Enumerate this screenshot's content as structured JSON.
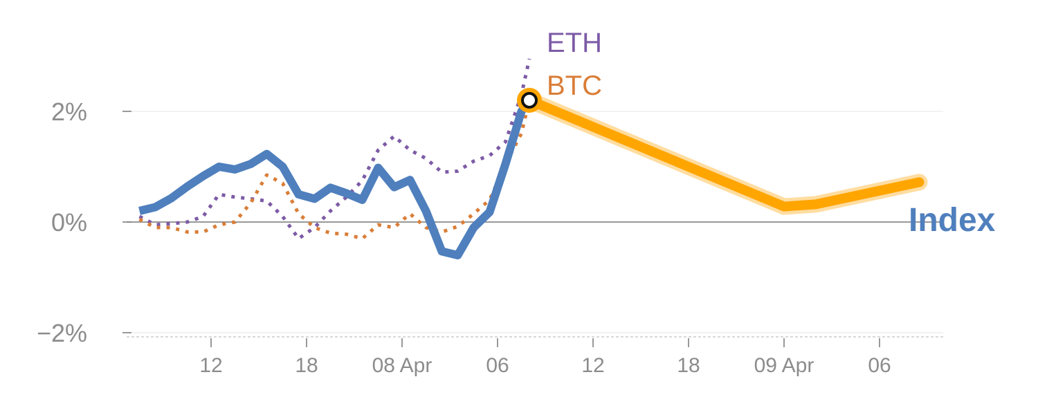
{
  "chart_data": {
    "type": "line",
    "title": "",
    "xlabel": "",
    "ylabel": "",
    "x_tick_labels": [
      "12",
      "18",
      "08 Apr",
      "06",
      "12",
      "18",
      "09 Apr",
      "06"
    ],
    "x_tick_hours": [
      12,
      18,
      24,
      30,
      36,
      42,
      48,
      54
    ],
    "y_tick_labels": [
      "2%",
      "0%",
      "−2%"
    ],
    "y_tick_values": [
      2,
      0,
      -2
    ],
    "ylim": [
      -2.1,
      3.1
    ],
    "xlim": [
      6.0,
      58.0
    ],
    "grid": "horizontal",
    "legend": "end labels",
    "series": [
      {
        "name": "Index",
        "style": "solid",
        "color": "#4f7fbd",
        "x": [
          7.5,
          8.5,
          9.5,
          10.5,
          11.5,
          12.5,
          13.5,
          14.5,
          15.5,
          16.5,
          17.5,
          18.5,
          19.5,
          20.5,
          21.5,
          22.5,
          23.5,
          24.5,
          25.5,
          26.5,
          27.5,
          28.5,
          29.5,
          30.5,
          31.5,
          32.0
        ],
        "values": [
          0.2,
          0.27,
          0.43,
          0.64,
          0.83,
          1.0,
          0.95,
          1.05,
          1.23,
          1.0,
          0.5,
          0.42,
          0.62,
          0.52,
          0.4,
          0.98,
          0.63,
          0.76,
          0.2,
          -0.53,
          -0.6,
          -0.1,
          0.18,
          1.05,
          2.0,
          2.2
        ]
      },
      {
        "name": "BTC",
        "style": "dotted",
        "color": "#d97e38",
        "x": [
          7.5,
          8.5,
          9.5,
          10.5,
          11.5,
          12.5,
          13.5,
          14.5,
          15.5,
          16.5,
          17.5,
          18.5,
          19.5,
          20.5,
          21.5,
          22.5,
          23.5,
          24.5,
          25.5,
          26.5,
          27.5,
          28.5,
          29.5,
          30.5,
          31.5,
          32.0
        ],
        "values": [
          0.05,
          -0.1,
          -0.1,
          -0.18,
          -0.18,
          -0.05,
          0.0,
          0.35,
          0.85,
          0.7,
          0.15,
          -0.1,
          -0.2,
          -0.22,
          -0.3,
          -0.05,
          -0.1,
          0.15,
          -0.1,
          -0.18,
          -0.08,
          0.15,
          0.4,
          1.05,
          1.6,
          2.2
        ]
      },
      {
        "name": "ETH",
        "style": "dotted",
        "color": "#7d5ba6",
        "x": [
          7.5,
          8.5,
          9.5,
          10.5,
          11.5,
          12.5,
          13.5,
          14.5,
          15.5,
          16.5,
          17.5,
          18.5,
          19.5,
          20.5,
          21.5,
          22.5,
          23.5,
          24.5,
          25.5,
          26.5,
          27.5,
          28.5,
          29.5,
          30.5,
          31.5,
          32.0
        ],
        "values": [
          0.1,
          -0.05,
          -0.03,
          0.0,
          0.1,
          0.5,
          0.45,
          0.42,
          0.38,
          0.1,
          -0.3,
          -0.1,
          0.2,
          0.45,
          0.75,
          1.3,
          1.55,
          1.3,
          1.15,
          0.9,
          0.92,
          1.1,
          1.2,
          1.45,
          2.3,
          2.95
        ]
      },
      {
        "name": "",
        "style": "highlight",
        "color": "#ffa500",
        "x": [
          32.0,
          48.0,
          50.0,
          56.5
        ],
        "values": [
          2.2,
          0.28,
          0.32,
          0.72
        ]
      }
    ],
    "labels": {
      "eth": "ETH",
      "btc": "BTC",
      "index": "Index"
    }
  }
}
